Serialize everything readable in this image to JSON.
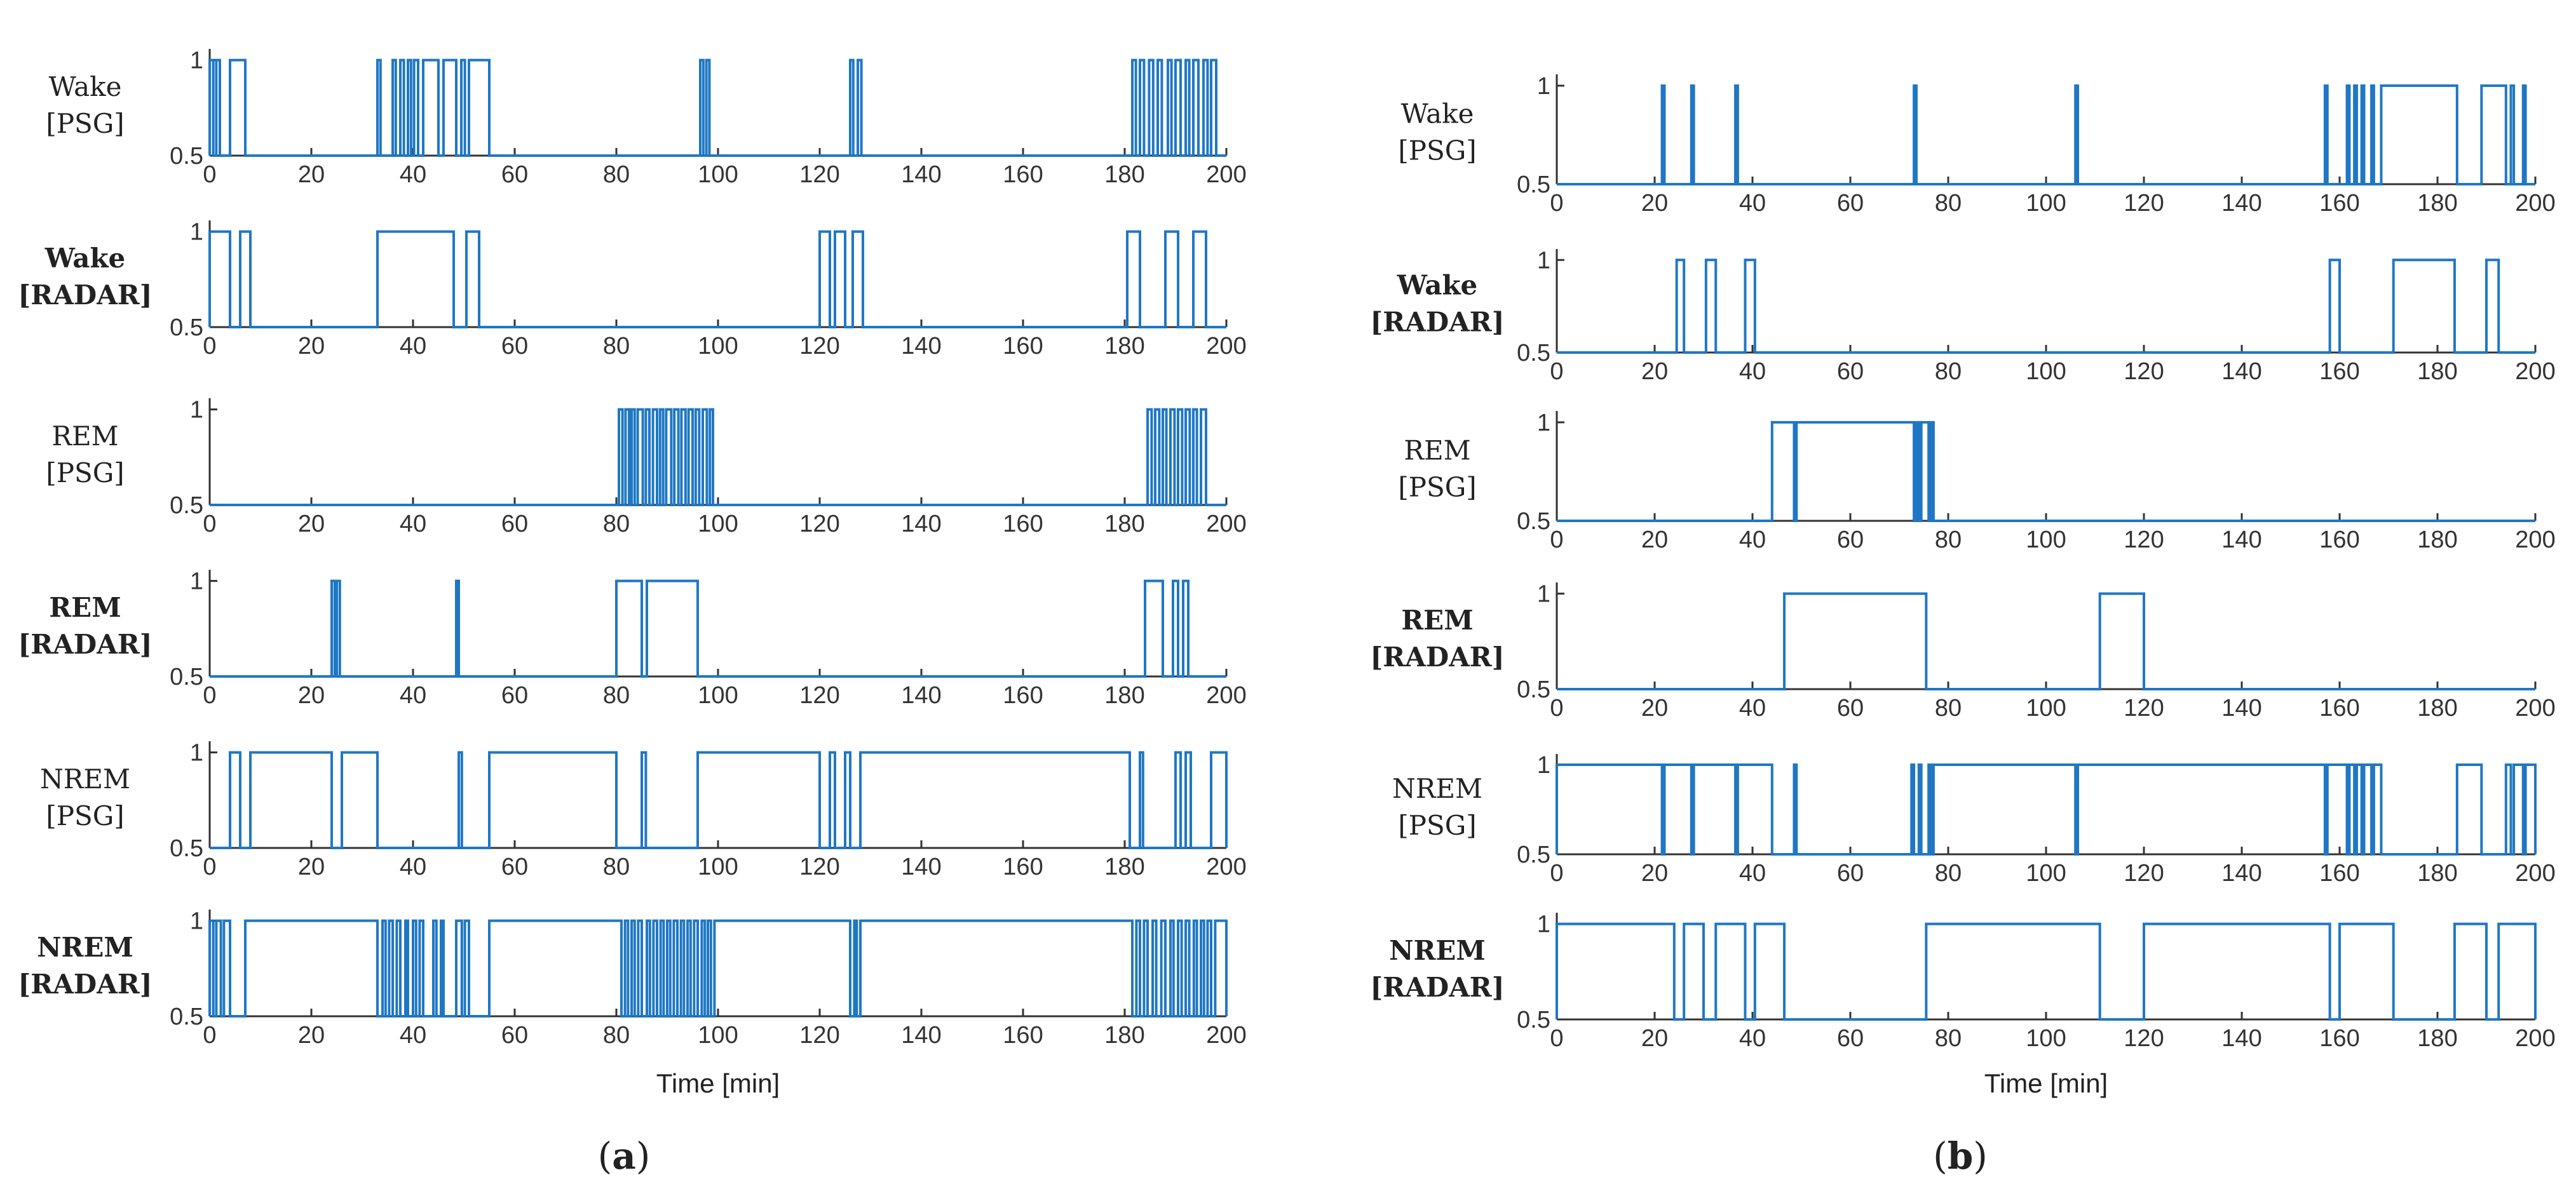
{
  "chart_data": [
    {
      "panel_label_parts": [
        "(",
        "a",
        ")"
      ],
      "xlabel": "Time [min]",
      "xlim": [
        0,
        200
      ],
      "x_ticks": [
        0,
        20,
        40,
        60,
        80,
        100,
        120,
        140,
        160,
        180,
        200
      ],
      "y_ticks": [
        "0.5",
        "1"
      ],
      "rows": [
        {
          "name": "wake-psg",
          "label": [
            "Wake",
            "[PSG]"
          ],
          "bold": false,
          "type": "line",
          "intervals": [
            [
              0,
              0.7
            ],
            [
              1.3,
              2
            ],
            [
              4,
              7
            ],
            [
              33,
              33.6
            ],
            [
              36,
              36.6
            ],
            [
              37.5,
              38.2
            ],
            [
              39,
              39.6
            ],
            [
              40.2,
              41
            ],
            [
              42,
              45
            ],
            [
              46,
              48.5
            ],
            [
              49.5,
              50.2
            ],
            [
              51,
              55
            ],
            [
              96.5,
              97.1
            ],
            [
              97.7,
              98.3
            ],
            [
              126,
              126.6
            ],
            [
              127.5,
              128.2
            ],
            [
              181.5,
              182.2
            ],
            [
              183,
              183.8
            ],
            [
              184.8,
              185.6
            ],
            [
              186.5,
              187.3
            ],
            [
              188.5,
              189.2
            ],
            [
              190,
              191
            ],
            [
              192,
              192.7
            ],
            [
              193.5,
              194.5
            ],
            [
              195.5,
              196.3
            ],
            [
              197,
              198
            ]
          ]
        },
        {
          "name": "wake-radar",
          "label": [
            "Wake",
            "[RADAR]"
          ],
          "bold": true,
          "type": "line",
          "intervals": [
            [
              0,
              4
            ],
            [
              6,
              8
            ],
            [
              33,
              48
            ],
            [
              50.5,
              53
            ],
            [
              120,
              122
            ],
            [
              123,
              125
            ],
            [
              126.5,
              128.5
            ],
            [
              180.5,
              183
            ],
            [
              188,
              190.5
            ],
            [
              193.5,
              196
            ]
          ]
        },
        {
          "name": "rem-psg",
          "label": [
            "REM",
            "[PSG]"
          ],
          "bold": false,
          "type": "line",
          "intervals": [
            [
              80.5,
              81.2
            ],
            [
              81.8,
              82.5
            ],
            [
              83,
              83.6
            ],
            [
              84.2,
              85.2
            ],
            [
              85.8,
              86.5
            ],
            [
              87.2,
              88
            ],
            [
              88.6,
              89.2
            ],
            [
              89.8,
              90.8
            ],
            [
              91.4,
              92.2
            ],
            [
              92.8,
              93.6
            ],
            [
              94.2,
              95
            ],
            [
              95.6,
              96.3
            ],
            [
              97,
              97.8
            ],
            [
              98.4,
              99
            ],
            [
              184.5,
              185.3
            ],
            [
              186,
              186.8
            ],
            [
              187.5,
              188.2
            ],
            [
              189,
              189.8
            ],
            [
              190.5,
              191.3
            ],
            [
              192,
              192.8
            ],
            [
              193.5,
              194.2
            ],
            [
              195,
              196
            ]
          ]
        },
        {
          "name": "rem-radar",
          "label": [
            "REM",
            "[RADAR]"
          ],
          "bold": true,
          "type": "line",
          "intervals": [
            [
              24,
              24.6
            ],
            [
              25,
              25.6
            ],
            [
              48.5,
              49
            ],
            [
              80,
              85
            ],
            [
              86,
              96
            ],
            [
              184,
              187.5
            ],
            [
              189.5,
              190.5
            ],
            [
              191.5,
              192.5
            ]
          ]
        },
        {
          "name": "nrem-psg",
          "label": [
            "NREM",
            "[PSG]"
          ],
          "bold": false,
          "type": "line",
          "intervals": [
            [
              4,
              6
            ],
            [
              8,
              24
            ],
            [
              26,
              33
            ],
            [
              49,
              49.6
            ],
            [
              55,
              80
            ],
            [
              85,
              85.8
            ],
            [
              96,
              120
            ],
            [
              122,
              123
            ],
            [
              125,
              126
            ],
            [
              128,
              181
            ],
            [
              183,
              183.6
            ],
            [
              190,
              191
            ],
            [
              192,
              193
            ],
            [
              197,
              200
            ]
          ]
        },
        {
          "name": "nrem-radar",
          "label": [
            "NREM",
            "[RADAR]"
          ],
          "bold": true,
          "type": "line",
          "intervals": [
            [
              0,
              0.7
            ],
            [
              1.3,
              2.2
            ],
            [
              2.8,
              4
            ],
            [
              7,
              33
            ],
            [
              34,
              34.6
            ],
            [
              35.3,
              36
            ],
            [
              36.8,
              37.5
            ],
            [
              38.5,
              39
            ],
            [
              40,
              40.6
            ],
            [
              41.3,
              42
            ],
            [
              44,
              44.6
            ],
            [
              45.5,
              46
            ],
            [
              48.5,
              49.6
            ],
            [
              50.2,
              51
            ],
            [
              55,
              81
            ],
            [
              81.7,
              82.3
            ],
            [
              83,
              83.6
            ],
            [
              84.3,
              85
            ],
            [
              86,
              86.6
            ],
            [
              87.3,
              88
            ],
            [
              88.7,
              89.3
            ],
            [
              90,
              90.6
            ],
            [
              91.3,
              92
            ],
            [
              92.7,
              93.3
            ],
            [
              94,
              94.6
            ],
            [
              95.3,
              96
            ],
            [
              96.8,
              97.4
            ],
            [
              98,
              98.6
            ],
            [
              99.3,
              126
            ],
            [
              126.8,
              127.3
            ],
            [
              128,
              181.5
            ],
            [
              182.3,
              183
            ],
            [
              183.8,
              184.5
            ],
            [
              185.5,
              186.2
            ],
            [
              187.2,
              188
            ],
            [
              189,
              189.6
            ],
            [
              190.5,
              191.2
            ],
            [
              192,
              192.7
            ],
            [
              193.6,
              194.2
            ],
            [
              195,
              195.6
            ],
            [
              196.3,
              197
            ],
            [
              197.8,
              200
            ]
          ]
        }
      ]
    },
    {
      "panel_label_parts": [
        "(",
        "b",
        ")"
      ],
      "xlabel": "Time [min]",
      "xlim": [
        0,
        200
      ],
      "x_ticks": [
        0,
        20,
        40,
        60,
        80,
        100,
        120,
        140,
        160,
        180,
        200
      ],
      "y_ticks": [
        "0.5",
        "1"
      ],
      "rows": [
        {
          "name": "wake-psg",
          "label": [
            "Wake",
            "[PSG]"
          ],
          "bold": false,
          "type": "line",
          "intervals": [
            [
              21.5,
              22
            ],
            [
              27.5,
              28
            ],
            [
              36.5,
              37
            ],
            [
              73,
              73.5
            ],
            [
              106,
              106.5
            ],
            [
              157,
              157.5
            ],
            [
              161.5,
              162
            ],
            [
              163,
              163.5
            ],
            [
              164.5,
              165
            ],
            [
              166.5,
              167
            ],
            [
              168.5,
              184
            ],
            [
              189,
              194
            ],
            [
              195,
              195.6
            ],
            [
              197.5,
              198
            ]
          ]
        },
        {
          "name": "wake-radar",
          "label": [
            "Wake",
            "[RADAR]"
          ],
          "bold": true,
          "type": "line",
          "intervals": [
            [
              24.5,
              26
            ],
            [
              30.5,
              32.5
            ],
            [
              38.5,
              40.5
            ],
            [
              158,
              160
            ],
            [
              171,
              183.5
            ],
            [
              190,
              192.5
            ]
          ]
        },
        {
          "name": "rem-psg",
          "label": [
            "REM",
            "[PSG]"
          ],
          "bold": false,
          "type": "line",
          "intervals": [
            [
              44,
              48.5
            ],
            [
              49,
              73
            ],
            [
              73.5,
              74
            ],
            [
              74.5,
              76
            ],
            [
              76.5,
              77
            ]
          ]
        },
        {
          "name": "rem-radar",
          "label": [
            "REM",
            "[RADAR]"
          ],
          "bold": true,
          "type": "line",
          "intervals": [
            [
              46.5,
              75.5
            ],
            [
              111,
              120
            ]
          ]
        },
        {
          "name": "nrem-psg",
          "label": [
            "NREM",
            "[PSG]"
          ],
          "bold": false,
          "type": "line",
          "intervals": [
            [
              0,
              21.5
            ],
            [
              22,
              27.5
            ],
            [
              28,
              36.5
            ],
            [
              37,
              44
            ],
            [
              48.5,
              49
            ],
            [
              72.5,
              73
            ],
            [
              74,
              74.5
            ],
            [
              76,
              76.5
            ],
            [
              77,
              106
            ],
            [
              106.5,
              157
            ],
            [
              157.5,
              161.5
            ],
            [
              162,
              163
            ],
            [
              163.5,
              164.5
            ],
            [
              165,
              166.5
            ],
            [
              167,
              168.5
            ],
            [
              184,
              189
            ],
            [
              194,
              195
            ],
            [
              195.6,
              197.5
            ],
            [
              198,
              200
            ]
          ]
        },
        {
          "name": "nrem-radar",
          "label": [
            "NREM",
            "[RADAR]"
          ],
          "bold": true,
          "type": "line",
          "intervals": [
            [
              0,
              24
            ],
            [
              26,
              30
            ],
            [
              32.5,
              38.5
            ],
            [
              40.5,
              46.5
            ],
            [
              75.5,
              111
            ],
            [
              120,
              158
            ],
            [
              160,
              171
            ],
            [
              183.5,
              190
            ],
            [
              192.5,
              200
            ]
          ]
        }
      ]
    }
  ]
}
